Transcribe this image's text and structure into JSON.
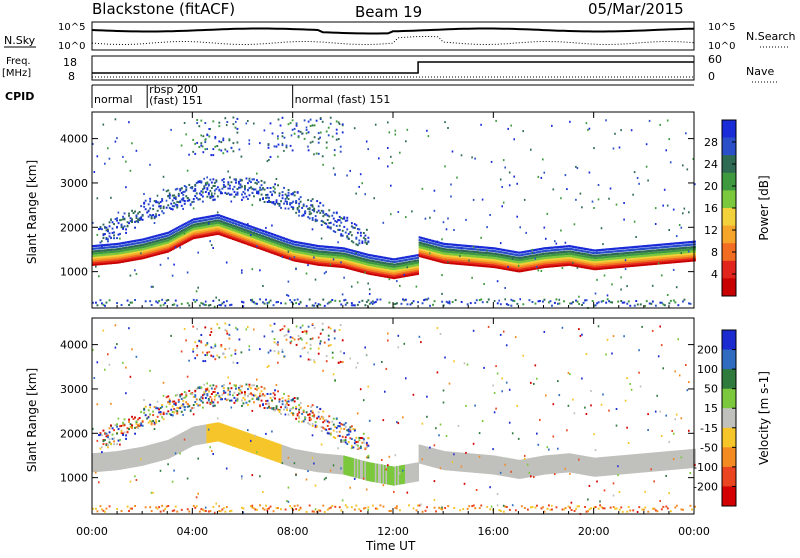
{
  "header": {
    "site": "Blackstone (fitACF)",
    "beam": "Beam 19",
    "date": "05/Mar/2015"
  },
  "sky_panel": {
    "label_left": "N.Sky",
    "label_right": "N.Search",
    "top_tick": "10^5",
    "bottom_tick": "10^0",
    "top_tick_right": "10^5",
    "bottom_tick_right": "10^0"
  },
  "freq_panel": {
    "label_left_1": "Freq.",
    "label_left_2": "[MHz]",
    "label_right": "Nave",
    "left_ticks": [
      "18",
      "8"
    ],
    "right_ticks": [
      "60",
      "0"
    ]
  },
  "cpid_panel": {
    "label": "CPID",
    "segments": [
      {
        "start_hour": 0.0,
        "line1": "normal",
        "line2": ""
      },
      {
        "start_hour": 2.2,
        "line1": "rbsp 200",
        "line2": "(fast) 151"
      },
      {
        "start_hour": 8.0,
        "line1": "normal (fast) 151",
        "line2": ""
      }
    ]
  },
  "x_axis": {
    "label": "Time UT",
    "ticks": [
      "00:00",
      "04:00",
      "08:00",
      "12:00",
      "16:00",
      "20:00",
      "00:00"
    ],
    "tick_hours": [
      0,
      4,
      8,
      12,
      16,
      20,
      24
    ]
  },
  "power_panel": {
    "ylabel": "Slant Range [km]",
    "yticks": [
      "1000",
      "2000",
      "3000",
      "4000"
    ],
    "ytick_values": [
      1000,
      2000,
      3000,
      4000
    ],
    "colorbar_label": "Power [dB]",
    "colorbar_ticks": [
      "28",
      "24",
      "20",
      "16",
      "12",
      "8",
      "4"
    ],
    "colors": [
      "#1a2bd8",
      "#2a4fc9",
      "#2e6b52",
      "#3f9a3f",
      "#7cc83d",
      "#f2d13a",
      "#f5a52a",
      "#f26d22",
      "#e2251c",
      "#c80000"
    ]
  },
  "velocity_panel": {
    "ylabel": "Slant Range [km]",
    "yticks": [
      "1000",
      "2000",
      "3000",
      "4000"
    ],
    "ytick_values": [
      1000,
      2000,
      3000,
      4000
    ],
    "colorbar_label": "Velocity [m s-1]",
    "colorbar_ticks": [
      "200",
      "100",
      "50",
      "15",
      "-15",
      "-50",
      "-100",
      "-200"
    ],
    "colors": [
      "#1b2bd0",
      "#2f6bbf",
      "#2f7a3d",
      "#7cc83d",
      "#c0c0bd",
      "#f5c52a",
      "#f38a22",
      "#ea4520",
      "#d40000"
    ]
  },
  "chart_data": {
    "type": "heatmap",
    "title": "Blackstone (fitACF)",
    "subtitle": "Beam 19",
    "xlabel": "Time UT",
    "ylabel": "Slant Range [km]",
    "xlim": [
      0,
      24
    ],
    "ylim": [
      180,
      4600
    ],
    "grid": false,
    "echo_bands": [
      {
        "description": "main power band",
        "from_hour": 0,
        "to_hour": 13,
        "center_km": [
          1200,
          1250,
          1350,
          1500,
          1800,
          1900,
          1700,
          1500,
          1300,
          1200,
          1150,
          1000,
          900,
          1000
        ]
      },
      {
        "description": "main power band",
        "from_hour": 13,
        "to_hour": 24,
        "center_km": [
          1400,
          1250,
          1200,
          1150,
          1050,
          1150,
          1200,
          1100,
          1150,
          1200,
          1250,
          1300
        ]
      }
    ],
    "power_scale_db": [
      4,
      8,
      12,
      16,
      20,
      24,
      28
    ],
    "velocity_scale_ms": [
      -200,
      -100,
      -50,
      -15,
      15,
      50,
      100,
      200
    ]
  }
}
